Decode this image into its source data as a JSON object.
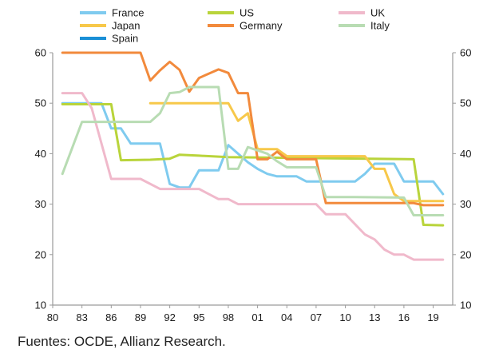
{
  "source_note": "Fuentes: OCDE, Allianz Research.",
  "chart_data": {
    "type": "line",
    "title": "",
    "xlabel": "",
    "ylabel": "",
    "xlim": [
      1980,
      2021
    ],
    "ylim": [
      10,
      60
    ],
    "y_ticks": [
      10,
      20,
      30,
      40,
      50,
      60
    ],
    "y_tick_labels_left": [
      "10",
      "20",
      "30",
      "40",
      "50",
      "60"
    ],
    "y_tick_labels_right": [
      "10",
      "20",
      "30",
      "40",
      "50",
      "60"
    ],
    "x_ticks": [
      1980,
      1983,
      1986,
      1989,
      1992,
      1995,
      1998,
      2001,
      2004,
      2007,
      2010,
      2013,
      2016,
      2019
    ],
    "x_tick_labels": [
      "80",
      "83",
      "86",
      "89",
      "92",
      "95",
      "98",
      "01",
      "04",
      "07",
      "10",
      "13",
      "16",
      "19"
    ],
    "grid": false,
    "legend_position": "top",
    "series": [
      {
        "name": "France",
        "color": "#7fcbef",
        "points": [
          [
            1981,
            50
          ],
          [
            1985,
            50
          ],
          [
            1986,
            45
          ],
          [
            1987,
            45
          ],
          [
            1988,
            42
          ],
          [
            1991,
            42
          ],
          [
            1992,
            34
          ],
          [
            1993,
            33.3
          ],
          [
            1994,
            33.3
          ],
          [
            1995,
            36.7
          ],
          [
            1997,
            36.7
          ],
          [
            1998,
            41.7
          ],
          [
            2000,
            38.3
          ],
          [
            2001,
            37
          ],
          [
            2002,
            36
          ],
          [
            2003,
            35.5
          ],
          [
            2005,
            35.5
          ],
          [
            2006,
            34.5
          ],
          [
            2011,
            34.5
          ],
          [
            2012,
            36
          ],
          [
            2013,
            38
          ],
          [
            2015,
            38
          ],
          [
            2016,
            34.5
          ],
          [
            2019,
            34.5
          ],
          [
            2020,
            32
          ]
        ]
      },
      {
        "name": "US",
        "color": "#b9d43b",
        "points": [
          [
            1981,
            49.8
          ],
          [
            1986,
            49.8
          ],
          [
            1987,
            38.7
          ],
          [
            1990,
            38.8
          ],
          [
            1992,
            39
          ],
          [
            1993,
            39.8
          ],
          [
            1995,
            39.6
          ],
          [
            1998,
            39.3
          ],
          [
            2017,
            38.9
          ],
          [
            2018,
            25.9
          ],
          [
            2020,
            25.8
          ]
        ]
      },
      {
        "name": "UK",
        "color": "#f0b9cb",
        "points": [
          [
            1981,
            52
          ],
          [
            1983,
            52
          ],
          [
            1984,
            49
          ],
          [
            1986,
            35
          ],
          [
            1989,
            35
          ],
          [
            1991,
            33
          ],
          [
            1995,
            33
          ],
          [
            1997,
            31
          ],
          [
            1998,
            31
          ],
          [
            1999,
            30
          ],
          [
            2007,
            30
          ],
          [
            2008,
            28
          ],
          [
            2010,
            28
          ],
          [
            2012,
            24
          ],
          [
            2013,
            23
          ],
          [
            2014,
            21
          ],
          [
            2015,
            20
          ],
          [
            2016,
            20
          ],
          [
            2017,
            19
          ],
          [
            2020,
            19
          ]
        ]
      },
      {
        "name": "Japan",
        "color": "#f7c84a",
        "points": [
          [
            1990,
            50
          ],
          [
            1998,
            50
          ],
          [
            1999,
            46.5
          ],
          [
            2000,
            48
          ],
          [
            2001,
            40.9
          ],
          [
            2003,
            40.9
          ],
          [
            2004,
            39.5
          ],
          [
            2012,
            39.5
          ],
          [
            2013,
            37
          ],
          [
            2014,
            37
          ],
          [
            2015,
            32
          ],
          [
            2016,
            30.6
          ],
          [
            2020,
            30.6
          ]
        ]
      },
      {
        "name": "Germany",
        "color": "#f28a3c",
        "points": [
          [
            1981,
            60
          ],
          [
            1989,
            60
          ],
          [
            1990,
            54.5
          ],
          [
            1991,
            56.5
          ],
          [
            1992,
            58.2
          ],
          [
            1993,
            56.6
          ],
          [
            1994,
            52.3
          ],
          [
            1995,
            55
          ],
          [
            1997,
            56.7
          ],
          [
            1998,
            56
          ],
          [
            1999,
            52
          ],
          [
            2000,
            52
          ],
          [
            2001,
            38.9
          ],
          [
            2002,
            38.9
          ],
          [
            2003,
            40.4
          ],
          [
            2004,
            38.9
          ],
          [
            2007,
            38.9
          ],
          [
            2008,
            30.2
          ],
          [
            2017,
            30.2
          ],
          [
            2018,
            29.8
          ],
          [
            2020,
            29.8
          ]
        ]
      },
      {
        "name": "Italy",
        "color": "#b8dcb3",
        "points": [
          [
            1981,
            36
          ],
          [
            1983,
            46.3
          ],
          [
            1990,
            46.3
          ],
          [
            1991,
            48
          ],
          [
            1992,
            52
          ],
          [
            1993,
            52.2
          ],
          [
            1994,
            53.2
          ],
          [
            1997,
            53.2
          ],
          [
            1998,
            37
          ],
          [
            1999,
            37
          ],
          [
            2000,
            41.3
          ],
          [
            2002,
            40
          ],
          [
            2003,
            38.5
          ],
          [
            2004,
            37.3
          ],
          [
            2007,
            37.3
          ],
          [
            2008,
            31.4
          ],
          [
            2011,
            31.4
          ],
          [
            2016,
            31.3
          ],
          [
            2017,
            27.8
          ],
          [
            2020,
            27.8
          ]
        ]
      },
      {
        "name": "Spain",
        "color": "#1a8fd6",
        "points": []
      }
    ]
  }
}
